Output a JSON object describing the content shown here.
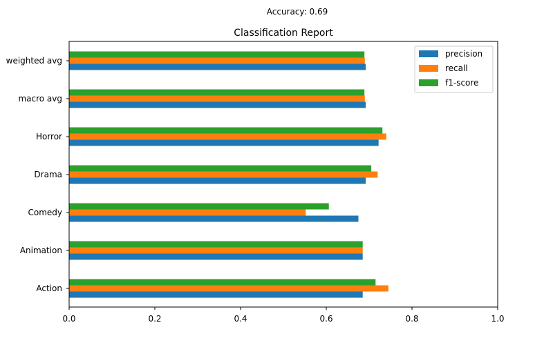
{
  "chart_data": {
    "type": "bar",
    "orientation": "horizontal",
    "subtitle": "Accuracy: 0.69",
    "title": "Classification Report",
    "categories": [
      "Action",
      "Animation",
      "Comedy",
      "Drama",
      "Horror",
      "macro avg",
      "weighted avg"
    ],
    "series": [
      {
        "name": "precision",
        "color": "#1f77b4",
        "values": [
          0.685,
          0.685,
          0.675,
          0.692,
          0.722,
          0.692,
          0.692
        ]
      },
      {
        "name": "recall",
        "color": "#ff7f0e",
        "values": [
          0.745,
          0.685,
          0.552,
          0.72,
          0.74,
          0.69,
          0.69
        ]
      },
      {
        "name": "f1-score",
        "color": "#2ca02c",
        "values": [
          0.715,
          0.685,
          0.606,
          0.705,
          0.731,
          0.689,
          0.689
        ]
      }
    ],
    "xlim": [
      0,
      1.0
    ],
    "xticks": [
      "0.0",
      "0.2",
      "0.4",
      "0.6",
      "0.8",
      "1.0"
    ],
    "grid": false,
    "legend_position": "top-right"
  }
}
